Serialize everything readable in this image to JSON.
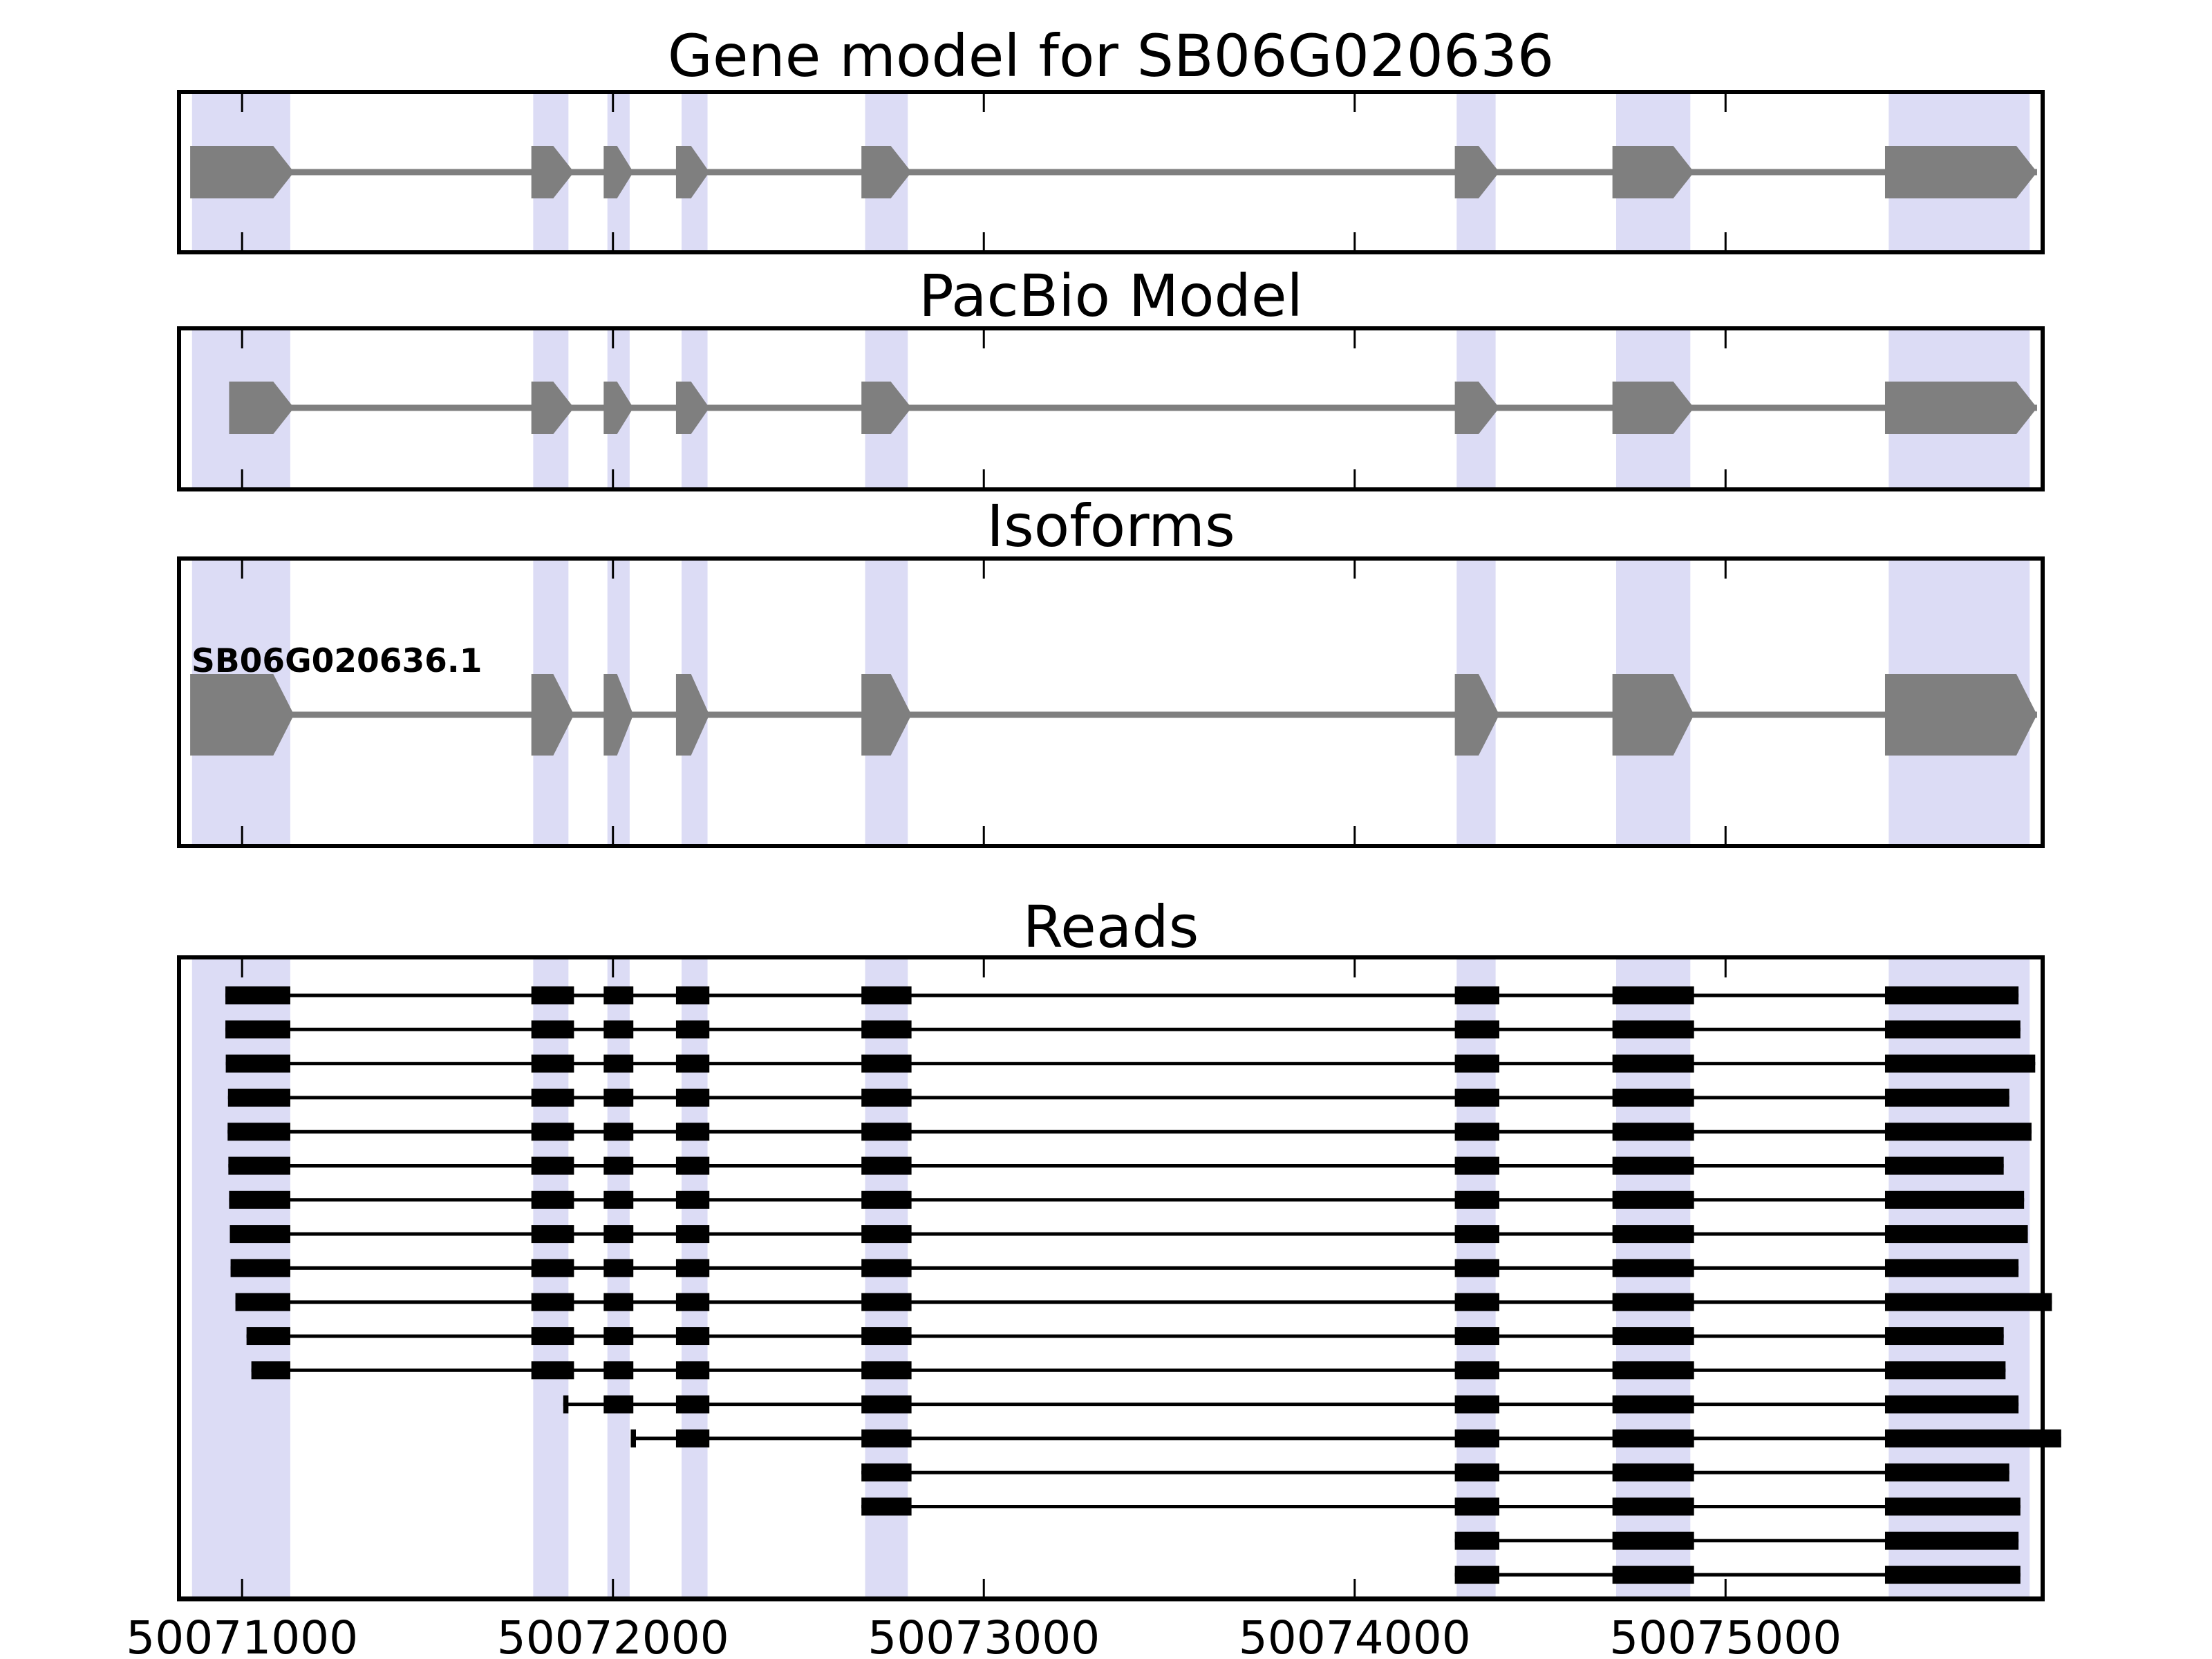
{
  "figure_title": "Gene model for SB06G020636",
  "colors": {
    "background": "#ffffff",
    "highlight_band": "#dcdcf5",
    "model_exon": "#7f7f7f",
    "intron_line": "#7f7f7f",
    "read": "#000000",
    "border": "#000000",
    "text": "#000000"
  },
  "chart_data": {
    "type": "gene-model-tracks",
    "x_axis": {
      "domain": [
        50070830,
        50075855
      ],
      "ticks": [
        {
          "pos": 50071000,
          "label": "50071000"
        },
        {
          "pos": 50072000,
          "label": "50072000"
        },
        {
          "pos": 50073000,
          "label": "50073000"
        },
        {
          "pos": 50074000,
          "label": "50074000"
        },
        {
          "pos": 50075000,
          "label": "50075000"
        }
      ]
    },
    "highlight_bands": [
      [
        50070865,
        50071130
      ],
      [
        50071785,
        50071880
      ],
      [
        50071985,
        50072045
      ],
      [
        50072185,
        50072255
      ],
      [
        50072680,
        50072795
      ],
      [
        50074275,
        50074380
      ],
      [
        50074705,
        50074905
      ],
      [
        50075440,
        50075820
      ]
    ],
    "panels": [
      {
        "name": "gene_model",
        "title": "Gene model for SB06G020636",
        "exons": [
          [
            50070860,
            50071140
          ],
          [
            50071780,
            50071895
          ],
          [
            50071975,
            50072055
          ],
          [
            50072170,
            50072260
          ],
          [
            50072670,
            50072805
          ],
          [
            50074270,
            50074390
          ],
          [
            50074695,
            50074915
          ],
          [
            50075430,
            50075840
          ]
        ]
      },
      {
        "name": "pacbio_model",
        "title": "PacBio Model",
        "exons": [
          [
            50070965,
            50071140
          ],
          [
            50071780,
            50071895
          ],
          [
            50071975,
            50072055
          ],
          [
            50072170,
            50072260
          ],
          [
            50072670,
            50072805
          ],
          [
            50074270,
            50074390
          ],
          [
            50074695,
            50074915
          ],
          [
            50075430,
            50075840
          ]
        ]
      },
      {
        "name": "isoforms",
        "title": "Isoforms",
        "isoform_label": "SB06G020636.1",
        "exons": [
          [
            50070860,
            50071140
          ],
          [
            50071780,
            50071895
          ],
          [
            50071975,
            50072055
          ],
          [
            50072170,
            50072260
          ],
          [
            50072670,
            50072805
          ],
          [
            50074270,
            50074390
          ],
          [
            50074695,
            50074915
          ],
          [
            50075430,
            50075840
          ]
        ]
      },
      {
        "name": "reads",
        "title": "Reads",
        "reads": [
          {
            "start": 50070955,
            "end": 50075790,
            "blocks": [
              [
                50070955,
                50071130
              ],
              [
                50071780,
                50071895
              ],
              [
                50071975,
                50072055
              ],
              [
                50072170,
                50072260
              ],
              [
                50072670,
                50072805
              ],
              [
                50074270,
                50074390
              ],
              [
                50074695,
                50074915
              ],
              [
                50075430,
                50075790
              ]
            ]
          },
          {
            "start": 50070955,
            "end": 50075795,
            "blocks": [
              [
                50070955,
                50071130
              ],
              [
                50071780,
                50071895
              ],
              [
                50071975,
                50072055
              ],
              [
                50072170,
                50072260
              ],
              [
                50072670,
                50072805
              ],
              [
                50074270,
                50074390
              ],
              [
                50074695,
                50074915
              ],
              [
                50075430,
                50075795
              ]
            ]
          },
          {
            "start": 50070956,
            "end": 50075835,
            "blocks": [
              [
                50070956,
                50071130
              ],
              [
                50071780,
                50071895
              ],
              [
                50071975,
                50072055
              ],
              [
                50072170,
                50072260
              ],
              [
                50072670,
                50072805
              ],
              [
                50074270,
                50074390
              ],
              [
                50074695,
                50074915
              ],
              [
                50075430,
                50075835
              ]
            ]
          },
          {
            "start": 50070962,
            "end": 50075765,
            "blocks": [
              [
                50070962,
                50071130
              ],
              [
                50071780,
                50071895
              ],
              [
                50071975,
                50072055
              ],
              [
                50072170,
                50072260
              ],
              [
                50072670,
                50072805
              ],
              [
                50074270,
                50074390
              ],
              [
                50074695,
                50074915
              ],
              [
                50075430,
                50075765
              ]
            ]
          },
          {
            "start": 50070961,
            "end": 50075825,
            "blocks": [
              [
                50070961,
                50071130
              ],
              [
                50071780,
                50071895
              ],
              [
                50071975,
                50072055
              ],
              [
                50072170,
                50072260
              ],
              [
                50072670,
                50072805
              ],
              [
                50074270,
                50074390
              ],
              [
                50074695,
                50074915
              ],
              [
                50075430,
                50075825
              ]
            ]
          },
          {
            "start": 50070963,
            "end": 50075750,
            "blocks": [
              [
                50070963,
                50071130
              ],
              [
                50071780,
                50071895
              ],
              [
                50071975,
                50072055
              ],
              [
                50072170,
                50072260
              ],
              [
                50072670,
                50072805
              ],
              [
                50074270,
                50074390
              ],
              [
                50074695,
                50074915
              ],
              [
                50075430,
                50075750
              ]
            ]
          },
          {
            "start": 50070965,
            "end": 50075805,
            "blocks": [
              [
                50070965,
                50071130
              ],
              [
                50071780,
                50071895
              ],
              [
                50071975,
                50072055
              ],
              [
                50072170,
                50072260
              ],
              [
                50072670,
                50072805
              ],
              [
                50074270,
                50074390
              ],
              [
                50074695,
                50074915
              ],
              [
                50075430,
                50075805
              ]
            ]
          },
          {
            "start": 50070967,
            "end": 50075815,
            "blocks": [
              [
                50070967,
                50071130
              ],
              [
                50071780,
                50071895
              ],
              [
                50071975,
                50072055
              ],
              [
                50072170,
                50072260
              ],
              [
                50072670,
                50072805
              ],
              [
                50074270,
                50074390
              ],
              [
                50074695,
                50074915
              ],
              [
                50075430,
                50075815
              ]
            ]
          },
          {
            "start": 50070969,
            "end": 50075790,
            "blocks": [
              [
                50070969,
                50071130
              ],
              [
                50071780,
                50071895
              ],
              [
                50071975,
                50072055
              ],
              [
                50072170,
                50072260
              ],
              [
                50072670,
                50072805
              ],
              [
                50074270,
                50074390
              ],
              [
                50074695,
                50074915
              ],
              [
                50075430,
                50075790
              ]
            ]
          },
          {
            "start": 50070982,
            "end": 50075880,
            "blocks": [
              [
                50070982,
                50071130
              ],
              [
                50071780,
                50071895
              ],
              [
                50071975,
                50072055
              ],
              [
                50072170,
                50072260
              ],
              [
                50072670,
                50072805
              ],
              [
                50074270,
                50074390
              ],
              [
                50074695,
                50074915
              ],
              [
                50075430,
                50075880
              ]
            ]
          },
          {
            "start": 50071012,
            "end": 50075750,
            "blocks": [
              [
                50071012,
                50071130
              ],
              [
                50071780,
                50071895
              ],
              [
                50071975,
                50072055
              ],
              [
                50072170,
                50072260
              ],
              [
                50072670,
                50072805
              ],
              [
                50074270,
                50074390
              ],
              [
                50074695,
                50074915
              ],
              [
                50075430,
                50075750
              ]
            ]
          },
          {
            "start": 50071025,
            "end": 50075755,
            "blocks": [
              [
                50071025,
                50071130
              ],
              [
                50071780,
                50071895
              ],
              [
                50071975,
                50072055
              ],
              [
                50072170,
                50072260
              ],
              [
                50072670,
                50072805
              ],
              [
                50074270,
                50074390
              ],
              [
                50074695,
                50074915
              ],
              [
                50075430,
                50075755
              ]
            ]
          },
          {
            "start": 50071866,
            "end": 50075790,
            "blocks": [
              [
                50071866,
                50071880
              ],
              [
                50071975,
                50072055
              ],
              [
                50072170,
                50072260
              ],
              [
                50072670,
                50072805
              ],
              [
                50074270,
                50074390
              ],
              [
                50074695,
                50074915
              ],
              [
                50075430,
                50075790
              ]
            ]
          },
          {
            "start": 50072048,
            "end": 50075905,
            "blocks": [
              [
                50072048,
                50072062
              ],
              [
                50072170,
                50072260
              ],
              [
                50072670,
                50072805
              ],
              [
                50074270,
                50074390
              ],
              [
                50074695,
                50074915
              ],
              [
                50075430,
                50075905
              ]
            ]
          },
          {
            "start": 50072670,
            "end": 50075765,
            "blocks": [
              [
                50072670,
                50072805
              ],
              [
                50074270,
                50074390
              ],
              [
                50074695,
                50074915
              ],
              [
                50075430,
                50075765
              ]
            ]
          },
          {
            "start": 50072670,
            "end": 50075795,
            "blocks": [
              [
                50072670,
                50072805
              ],
              [
                50074270,
                50074390
              ],
              [
                50074695,
                50074915
              ],
              [
                50075430,
                50075795
              ]
            ]
          },
          {
            "start": 50074270,
            "end": 50075790,
            "blocks": [
              [
                50074270,
                50074390
              ],
              [
                50074695,
                50074915
              ],
              [
                50075430,
                50075790
              ]
            ]
          },
          {
            "start": 50074270,
            "end": 50075795,
            "blocks": [
              [
                50074270,
                50074390
              ],
              [
                50074695,
                50074915
              ],
              [
                50075430,
                50075795
              ]
            ]
          }
        ]
      }
    ]
  }
}
